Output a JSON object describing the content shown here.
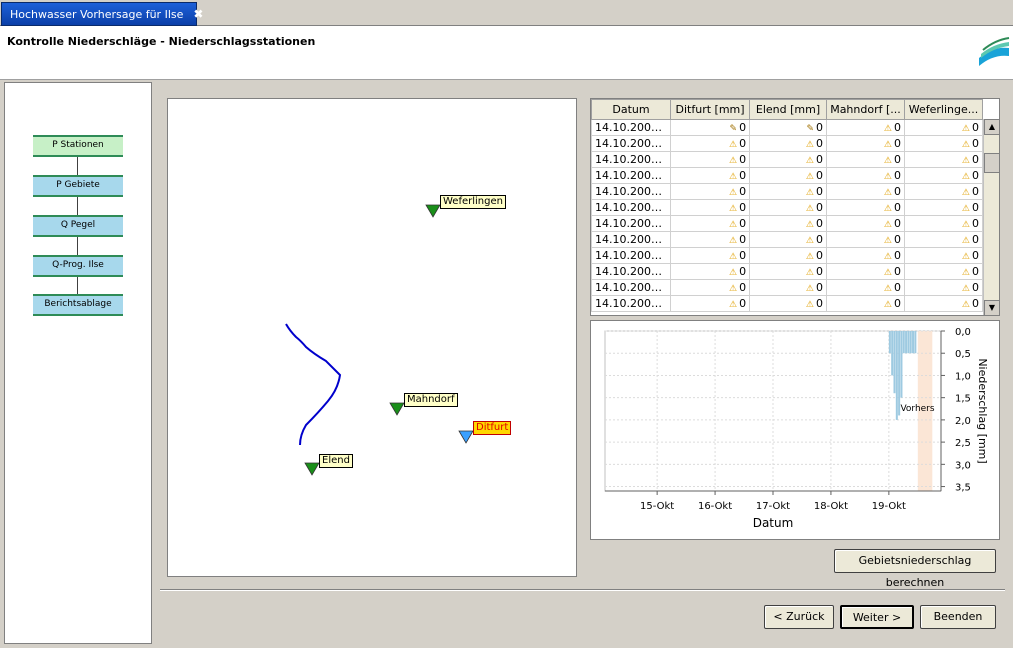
{
  "tab": {
    "title": "Hochwasser Vorhersage für Ilse",
    "close": "✖"
  },
  "page": {
    "title": "Kontrolle Niederschläge - Niederschlagsstationen"
  },
  "workflow": [
    {
      "label": "P Stationen",
      "active": true
    },
    {
      "label": "P Gebiete",
      "active": false
    },
    {
      "label": "Q Pegel",
      "active": false
    },
    {
      "label": "Q-Prog. Ilse",
      "active": false
    },
    {
      "label": "Berichtsablage",
      "active": false
    }
  ],
  "map": {
    "stations": [
      {
        "name": "Weferlingen",
        "marker_color": "#1a8f1a",
        "selected": false
      },
      {
        "name": "Mahndorf",
        "marker_color": "#1a8f1a",
        "selected": false
      },
      {
        "name": "Ditfurt",
        "marker_color": "#3aa0ff",
        "selected": true
      },
      {
        "name": "Elend",
        "marker_color": "#1a8f1a",
        "selected": false
      }
    ],
    "river_color": "#0000cc"
  },
  "table": {
    "headers": [
      "Datum",
      "Ditfurt [mm]",
      "Elend [mm]",
      "Mahndorf [...",
      "Weferlinge..."
    ],
    "rows": [
      {
        "date": "14.10.2005 ...",
        "cells": [
          {
            "icon": "pen",
            "v": "0"
          },
          {
            "icon": "pen",
            "v": "0"
          },
          {
            "icon": "warn",
            "v": "0"
          },
          {
            "icon": "warn",
            "v": "0"
          }
        ]
      },
      {
        "date": "14.10.2005 ...",
        "cells": [
          {
            "icon": "warn",
            "v": "0"
          },
          {
            "icon": "warn",
            "v": "0"
          },
          {
            "icon": "warn",
            "v": "0"
          },
          {
            "icon": "warn",
            "v": "0"
          }
        ]
      },
      {
        "date": "14.10.2005 ...",
        "cells": [
          {
            "icon": "warn",
            "v": "0"
          },
          {
            "icon": "warn",
            "v": "0"
          },
          {
            "icon": "warn",
            "v": "0"
          },
          {
            "icon": "warn",
            "v": "0"
          }
        ]
      },
      {
        "date": "14.10.2005 ...",
        "cells": [
          {
            "icon": "warn",
            "v": "0"
          },
          {
            "icon": "warn",
            "v": "0"
          },
          {
            "icon": "warn",
            "v": "0"
          },
          {
            "icon": "warn",
            "v": "0"
          }
        ]
      },
      {
        "date": "14.10.2005 ...",
        "cells": [
          {
            "icon": "warn",
            "v": "0"
          },
          {
            "icon": "warn",
            "v": "0"
          },
          {
            "icon": "warn",
            "v": "0"
          },
          {
            "icon": "warn",
            "v": "0"
          }
        ]
      },
      {
        "date": "14.10.2005 ...",
        "cells": [
          {
            "icon": "warn",
            "v": "0"
          },
          {
            "icon": "warn",
            "v": "0"
          },
          {
            "icon": "warn",
            "v": "0"
          },
          {
            "icon": "warn",
            "v": "0"
          }
        ]
      },
      {
        "date": "14.10.2005 ...",
        "cells": [
          {
            "icon": "warn",
            "v": "0"
          },
          {
            "icon": "warn",
            "v": "0"
          },
          {
            "icon": "warn",
            "v": "0"
          },
          {
            "icon": "warn",
            "v": "0"
          }
        ]
      },
      {
        "date": "14.10.2005 ...",
        "cells": [
          {
            "icon": "warn",
            "v": "0"
          },
          {
            "icon": "warn",
            "v": "0"
          },
          {
            "icon": "warn",
            "v": "0"
          },
          {
            "icon": "warn",
            "v": "0"
          }
        ]
      },
      {
        "date": "14.10.2005 ...",
        "cells": [
          {
            "icon": "warn",
            "v": "0"
          },
          {
            "icon": "warn",
            "v": "0"
          },
          {
            "icon": "warn",
            "v": "0"
          },
          {
            "icon": "warn",
            "v": "0"
          }
        ]
      },
      {
        "date": "14.10.2005 ...",
        "cells": [
          {
            "icon": "warn",
            "v": "0"
          },
          {
            "icon": "warn",
            "v": "0"
          },
          {
            "icon": "warn",
            "v": "0"
          },
          {
            "icon": "warn",
            "v": "0"
          }
        ]
      },
      {
        "date": "14.10.2005 ...",
        "cells": [
          {
            "icon": "warn",
            "v": "0"
          },
          {
            "icon": "warn",
            "v": "0"
          },
          {
            "icon": "warn",
            "v": "0"
          },
          {
            "icon": "warn",
            "v": "0"
          }
        ]
      },
      {
        "date": "14.10.2005 ...",
        "cells": [
          {
            "icon": "warn",
            "v": "0"
          },
          {
            "icon": "warn",
            "v": "0"
          },
          {
            "icon": "warn",
            "v": "0"
          },
          {
            "icon": "warn",
            "v": "0"
          }
        ]
      }
    ]
  },
  "chart_data": {
    "type": "bar",
    "xlabel": "Datum",
    "ylabel": "Niederschlag [mm]",
    "x_ticks": [
      "15-Okt",
      "16-Okt",
      "17-Okt",
      "18-Okt",
      "19-Okt"
    ],
    "y_ticks": [
      "0,0",
      "0,5",
      "1,0",
      "1,5",
      "2,0",
      "2,5",
      "3,0",
      "3,5"
    ],
    "ylim": [
      0,
      3.6
    ],
    "y_inverted": true,
    "grid": true,
    "bar_color": "#9ecae1",
    "forecast_color": "#fbe6d6",
    "annotation": "Vorhers",
    "bars": [
      {
        "day": 19.0,
        "value": 0.5
      },
      {
        "day": 19.04,
        "value": 1.0
      },
      {
        "day": 19.08,
        "value": 1.4
      },
      {
        "day": 19.12,
        "value": 2.0
      },
      {
        "day": 19.16,
        "value": 1.9
      },
      {
        "day": 19.2,
        "value": 1.5
      },
      {
        "day": 19.24,
        "value": 0.5
      },
      {
        "day": 19.28,
        "value": 0.5
      },
      {
        "day": 19.32,
        "value": 0.5
      },
      {
        "day": 19.36,
        "value": 0.5
      },
      {
        "day": 19.4,
        "value": 0.5
      },
      {
        "day": 19.44,
        "value": 0.5
      }
    ],
    "forecast_start_day": 19.5,
    "forecast_end_day": 19.75
  },
  "buttons": {
    "compute": "Gebietsniederschlag berechnen",
    "back": "< Zurück",
    "next": "Weiter >",
    "finish": "Beenden"
  }
}
